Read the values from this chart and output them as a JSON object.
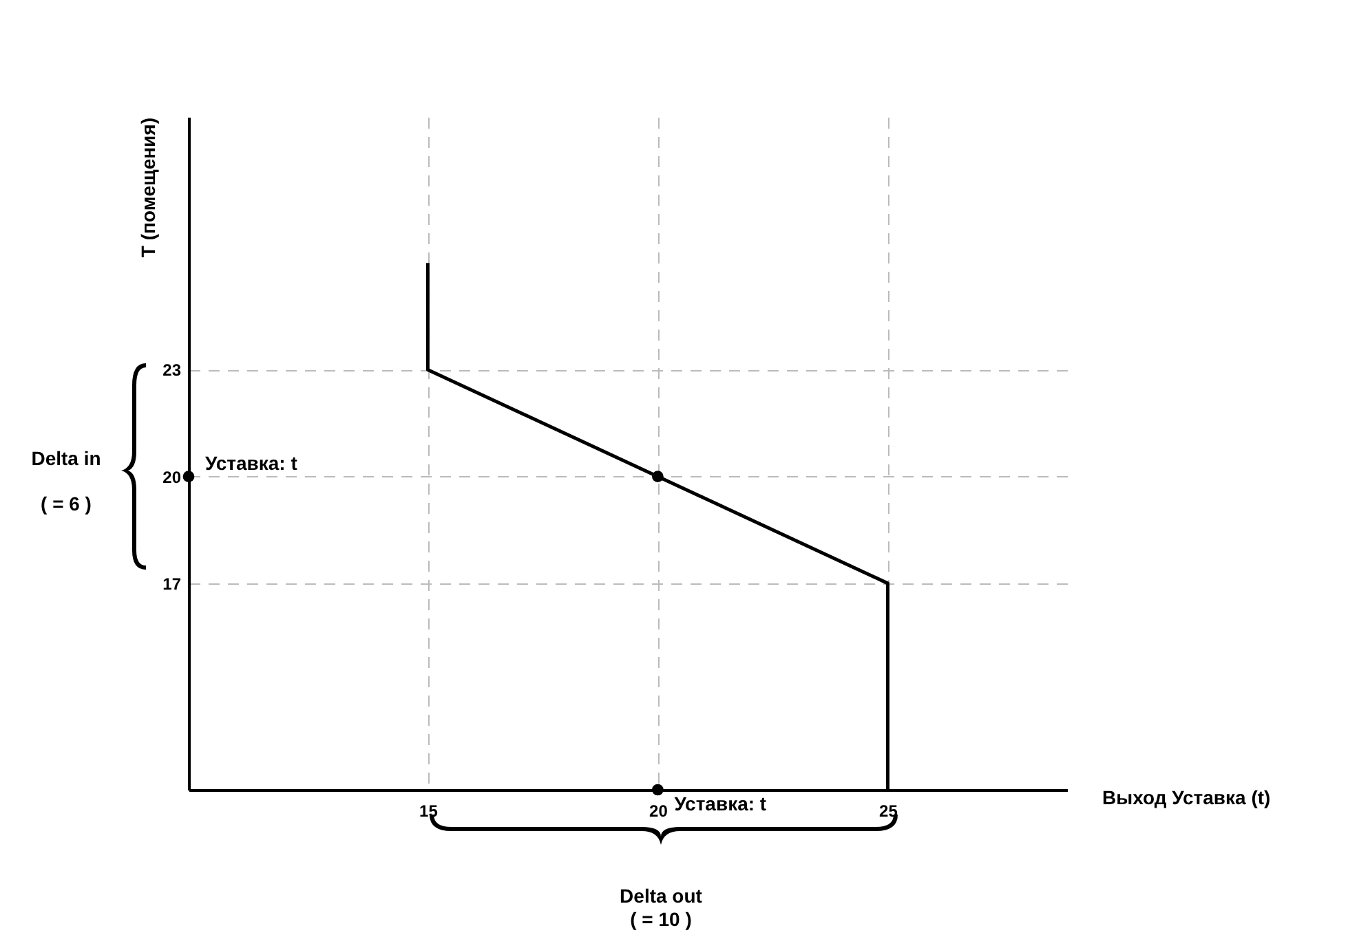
{
  "chart_data": {
    "type": "line",
    "xlabel": "Выход Уставка (t)",
    "ylabel": "T (помещения)",
    "series": [
      {
        "type": "line",
        "color": "#000000",
        "marker": "none",
        "x": [
          15,
          15,
          25,
          25
        ],
        "values": [
          26,
          23,
          17,
          11.2
        ]
      },
      {
        "type": "scatter",
        "marker": "circle",
        "color": "#000000",
        "x": [
          9.8,
          20,
          20
        ],
        "values": [
          20,
          20,
          11.2
        ]
      }
    ],
    "xlim": [
      9.8,
      28.9
    ],
    "ylim": [
      11.2,
      30.1
    ],
    "xticks": [
      15,
      20,
      25
    ],
    "yticks": [
      17,
      20,
      23
    ],
    "grid": true,
    "line_style": "solid",
    "annotations": [
      {
        "text": "Уставка: t",
        "x": 20,
        "y": 11.2
      },
      {
        "text": "Уставка: t",
        "x": 9.8,
        "y": 20
      },
      "Delta in",
      "( = 6 )",
      "Delta out",
      "( = 10 )"
    ]
  }
}
